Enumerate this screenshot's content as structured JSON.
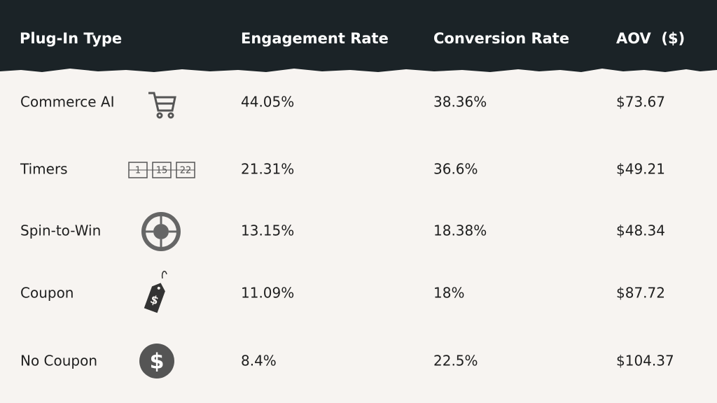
{
  "table": {
    "header": [
      "Plug-In Type",
      "Engagement Rate",
      "Conversion Rate",
      "AOV  ($)"
    ],
    "rows": [
      [
        "Commerce AI",
        "44.05%",
        "38.36%",
        "$73.67"
      ],
      [
        "Timers",
        "21.31%",
        "36.6%",
        "$49.21"
      ],
      [
        "Spin-to-Win",
        "13.15%",
        "18.38%",
        "$48.34"
      ],
      [
        "Coupon",
        "11.09%",
        "18%",
        "$87.72"
      ],
      [
        "No Coupon",
        "8.4%",
        "22.5%",
        "$104.37"
      ]
    ],
    "icons": {
      "timer": [
        "1",
        "15",
        "22"
      ],
      "coupon": "$",
      "no_coupon": "$"
    }
  }
}
